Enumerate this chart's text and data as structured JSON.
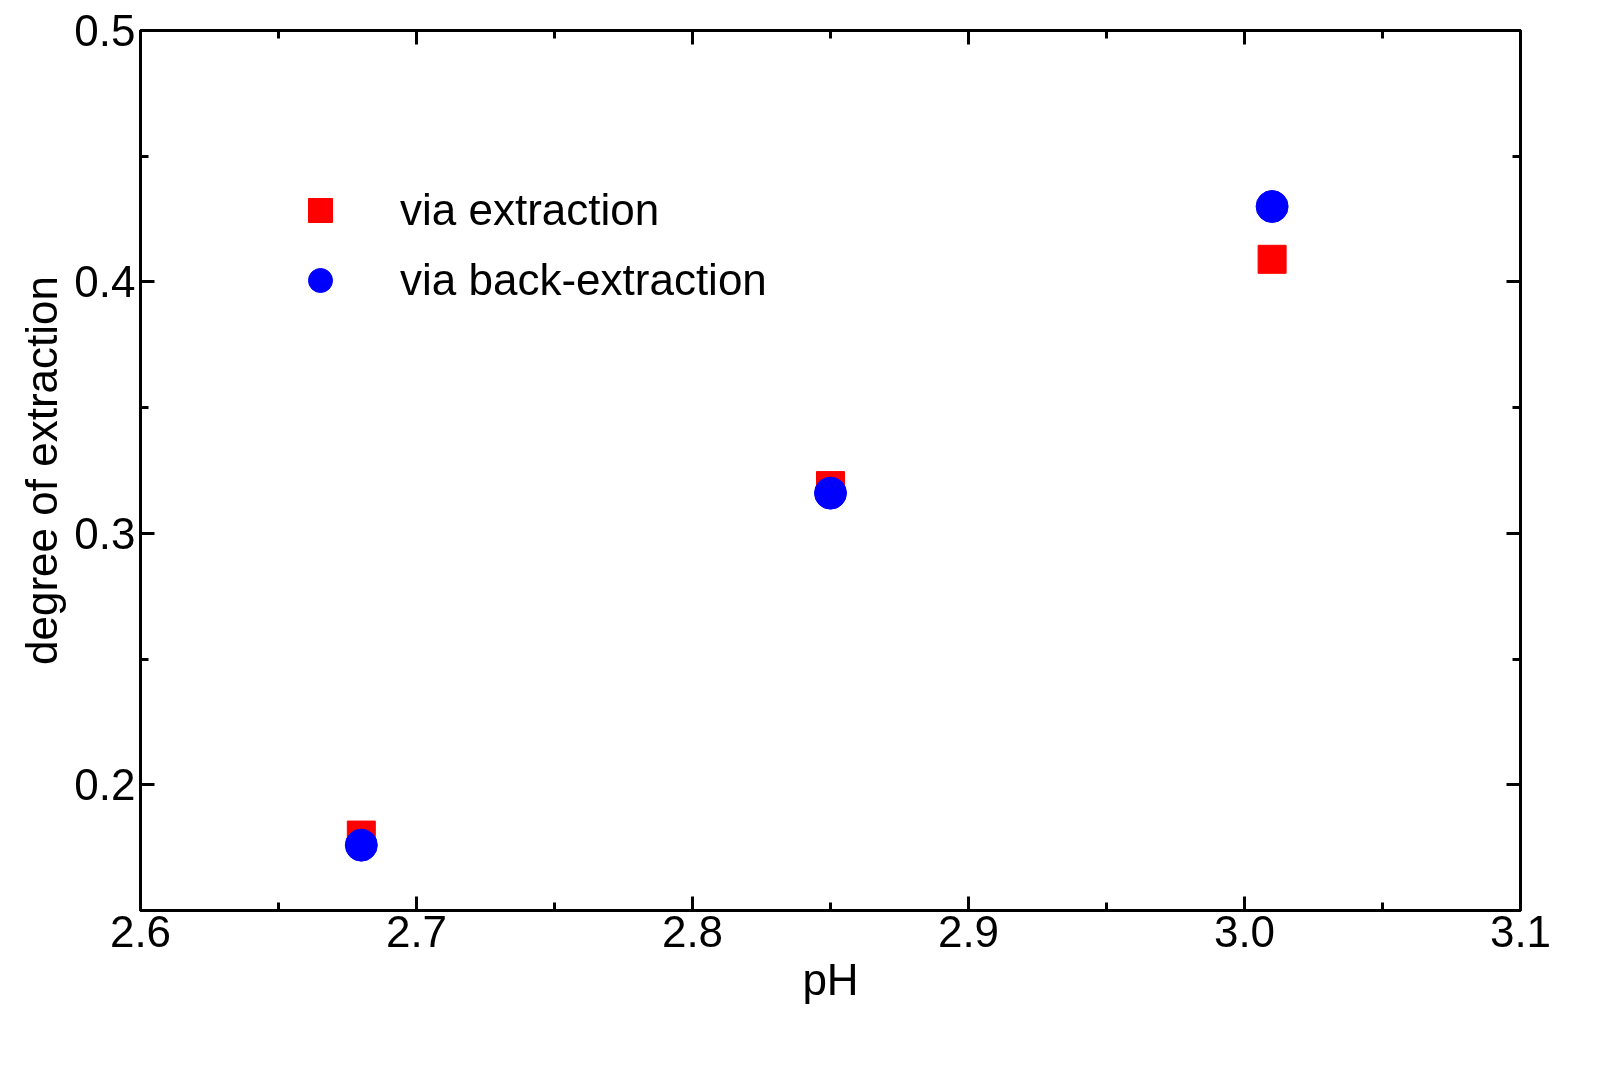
{
  "chart_data": {
    "type": "scatter",
    "xlabel": "pH",
    "ylabel": "degree of extraction",
    "xlim": [
      2.6,
      3.1
    ],
    "xticks": [
      2.6,
      {
        "value": 2.65,
        "label": null
      },
      2.7,
      {
        "value": 2.75,
        "label": null
      },
      2.8,
      {
        "value": 2.85,
        "label": null
      },
      2.9,
      {
        "value": 2.95,
        "label": null
      },
      {
        "value": 3.0,
        "label": "3.0"
      },
      {
        "value": 3.05,
        "label": null
      },
      3.1
    ],
    "ylim": [
      0.15,
      0.5
    ],
    "yticks": [
      0.2,
      {
        "value": 0.25,
        "label": null
      },
      0.3,
      {
        "value": 0.35,
        "label": null
      },
      0.4,
      {
        "value": 0.45,
        "label": null
      },
      0.5
    ],
    "x": [
      2.68,
      2.85,
      3.01
    ],
    "series": [
      {
        "name": "via extraction",
        "color": "#ff0000",
        "marker": "square",
        "values": [
          0.18,
          0.319,
          0.409
        ]
      },
      {
        "name": "via back-extraction",
        "color": "#0000ff",
        "marker": "circle",
        "values": [
          0.176,
          0.316,
          0.43
        ]
      }
    ],
    "legend": "top left",
    "grid": false
  }
}
